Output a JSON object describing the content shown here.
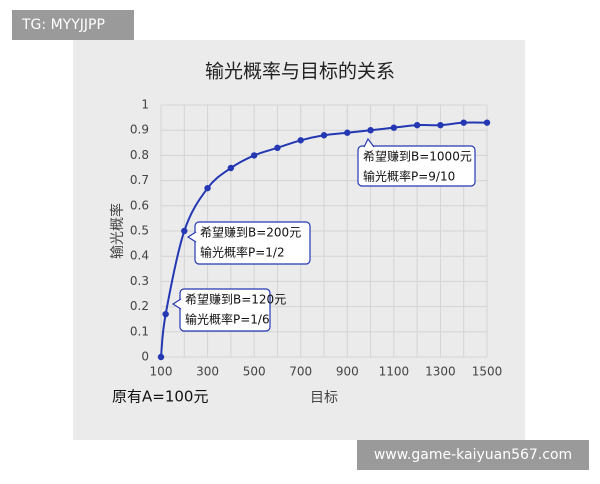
{
  "watermarks": {
    "top": "TG: MYYJJPP",
    "bottom": "www.game-kaiyuan567.com"
  },
  "chart_data": {
    "type": "line",
    "title": "输光概率与目标的关系",
    "x_label": "目标",
    "y_label": "输光概率",
    "note": "原有A=100元",
    "x": [
      100,
      120,
      200,
      300,
      400,
      500,
      600,
      700,
      800,
      900,
      1000,
      1100,
      1200,
      1300,
      1400,
      1500
    ],
    "series": [
      {
        "color": "#2438b4",
        "values": [
          0,
          0.17,
          0.5,
          0.67,
          0.75,
          0.8,
          0.83,
          0.86,
          0.88,
          0.89,
          0.9,
          0.91,
          0.92,
          0.92,
          0.93,
          0.93
        ]
      }
    ],
    "xlim": [
      100,
      1500
    ],
    "ylim": [
      0,
      1
    ],
    "xticks": [
      100,
      300,
      500,
      700,
      900,
      1100,
      1300,
      1500
    ],
    "x_minor_grid": [
      200,
      400,
      600,
      800,
      1000,
      1200,
      1400
    ],
    "yticks": [
      0,
      0.1,
      0.2,
      0.3,
      0.4,
      0.5,
      0.6,
      0.7,
      0.8,
      0.9,
      1
    ],
    "grid": true,
    "annotations": [
      {
        "lines": [
          "希望赚到B=120元",
          "输光概率P=1/6"
        ]
      },
      {
        "lines": [
          "希望赚到B=200元",
          "输光概率P=1/2"
        ]
      },
      {
        "lines": [
          "希望赚到B=1000元",
          "输光概率P=9/10"
        ]
      }
    ]
  }
}
